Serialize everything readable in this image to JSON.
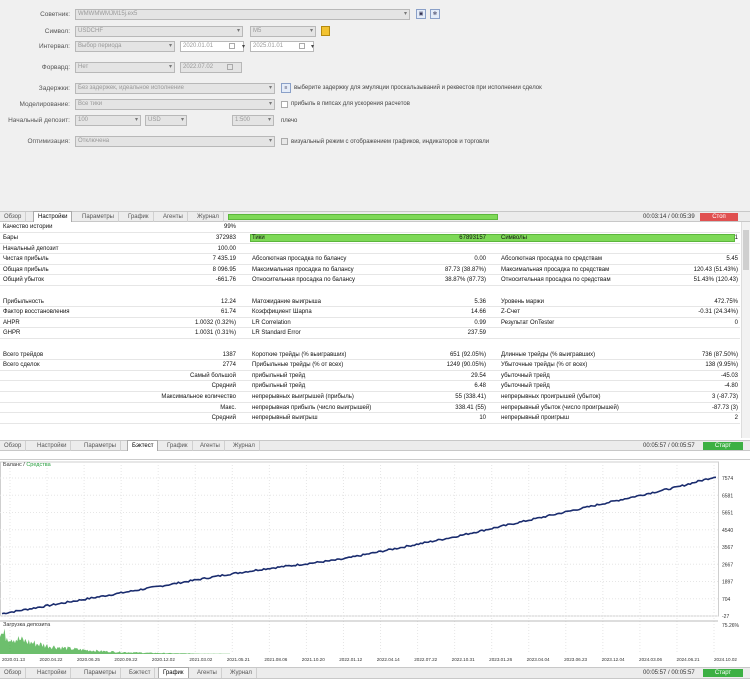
{
  "settings": {
    "advisor": {
      "label": "Советник:",
      "value": "WMWMWMJM15j.ex5"
    },
    "symbol": {
      "label": "Символ:",
      "value": "USDCHF",
      "period": "M5"
    },
    "interval": {
      "label": "Интервал:",
      "value": "Выбор периода",
      "from": "2020.01.01",
      "to": "2025.01.01"
    },
    "forward": {
      "label": "Форвард:",
      "value": "Нет",
      "date": "2022.07.02"
    },
    "delays": {
      "label": "Задержки:",
      "value": "Без задержек, идеальное исполнение",
      "note": "выберите задержку для эмуляции проскальзываний и реквестов при исполнении сделок"
    },
    "modeling": {
      "label": "Моделирование:",
      "value": "Все тики",
      "note": "прибыль в пипсах для ускорения расчетов"
    },
    "deposit": {
      "label": "Начальный депозит:",
      "value": "100",
      "currency": "USD",
      "leverage": "1:500",
      "leverage_note": "плечо"
    },
    "optimization": {
      "label": "Оптимизация:",
      "value": "Отключена",
      "note": "визуальный режим с отображением графиков, индикаторов и торговли"
    }
  },
  "tabs_top": {
    "items": [
      "Обзор",
      "Настройки",
      "Параметры",
      "График",
      "Агенты",
      "Журнал"
    ],
    "active": 1,
    "timer": "00:03:14 / 00:05:39",
    "stop_label": "Стоп"
  },
  "results": {
    "history_quality": {
      "label": "Качество истории",
      "value": "99%"
    },
    "col1": [
      {
        "label": "Бары",
        "value": "372983"
      },
      {
        "label": "Начальный депозит",
        "value": "100.00"
      },
      {
        "label": "Чистая прибыль",
        "value": "7 435.19"
      },
      {
        "label": "Общая прибыль",
        "value": "8 096.95"
      },
      {
        "label": "Общий убыток",
        "value": "-661.76"
      }
    ],
    "col2": [
      {
        "label": "Тики",
        "value": "67893157"
      },
      {
        "label": "",
        "value": ""
      },
      {
        "label": "Абсолютная просадка по балансу",
        "value": "0.00"
      },
      {
        "label": "Максимальная просадка по балансу",
        "value": "87.73 (38.87%)"
      },
      {
        "label": "Относительная просадка по балансу",
        "value": "38.87% (87.73)"
      }
    ],
    "col3": [
      {
        "label": "Символы",
        "value": "1"
      },
      {
        "label": "",
        "value": ""
      },
      {
        "label": "Абсолютная просадка по средствам",
        "value": "5.45"
      },
      {
        "label": "Максимальная просадка по средствам",
        "value": "120.43 (51.43%)"
      },
      {
        "label": "Относительная просадка по средствам",
        "value": "51.43% (120.43)"
      }
    ],
    "col1b": [
      {
        "label": "Прибыльность",
        "value": "12.24"
      },
      {
        "label": "Фактор восстановления",
        "value": "61.74"
      },
      {
        "label": "AHPR",
        "value": "1.0032 (0.32%)"
      },
      {
        "label": "GHPR",
        "value": "1.0031 (0.31%)"
      }
    ],
    "col2b": [
      {
        "label": "Матожидание выигрыша",
        "value": "5.36"
      },
      {
        "label": "Коэффициент Шарпа",
        "value": "14.66"
      },
      {
        "label": "LR Correlation",
        "value": "0.99"
      },
      {
        "label": "LR Standard Error",
        "value": "237.59"
      }
    ],
    "col3b": [
      {
        "label": "Уровень маржи",
        "value": "472.75%"
      },
      {
        "label": "Z-Счет",
        "value": "-0.31 (24.34%)"
      },
      {
        "label": "Результат OnTester",
        "value": "0"
      },
      {
        "label": "",
        "value": ""
      }
    ],
    "col1c": [
      {
        "label": "Всего трейдов",
        "value": "1387"
      },
      {
        "label": "Всего сделок",
        "value": "2774"
      },
      {
        "label": "Самый большой",
        "value": ""
      },
      {
        "label": "Средний",
        "value": ""
      },
      {
        "label": "Максимальное количество",
        "value": ""
      },
      {
        "label": "Макс.",
        "value": ""
      },
      {
        "label": "Средний",
        "value": ""
      }
    ],
    "col2c": [
      {
        "label": "Короткие трейды (% выигравших)",
        "value": "651 (92.05%)"
      },
      {
        "label": "Прибыльные трейды (% от всех)",
        "value": "1249 (90.05%)"
      },
      {
        "label": "прибыльный трейд",
        "value": "29.54"
      },
      {
        "label": "прибыльный трейд",
        "value": "6.48"
      },
      {
        "label": "непрерывных выигрышей (прибыль)",
        "value": "55 (338.41)"
      },
      {
        "label": "непрерывная прибыль (число выигрышей)",
        "value": "338.41 (55)"
      },
      {
        "label": "непрерывный выигрыш",
        "value": "10"
      }
    ],
    "col3c": [
      {
        "label": "Длинные трейды (% выигравших)",
        "value": "736 (87.50%)"
      },
      {
        "label": "Убыточные трейды (% от всех)",
        "value": "138 (9.95%)"
      },
      {
        "label": "убыточный трейд",
        "value": "-45.03"
      },
      {
        "label": "убыточный трейд",
        "value": "-4.80"
      },
      {
        "label": "непрерывных проигрышей (убыток)",
        "value": "3 (-87.73)"
      },
      {
        "label": "непрерывный убыток (число проигрышей)",
        "value": "-87.73 (3)"
      },
      {
        "label": "непрерывный проигрыш",
        "value": "2"
      }
    ]
  },
  "tabs_mid": {
    "items": [
      "Обзор",
      "Настройки",
      "Параметры",
      "Бэктест",
      "График",
      "Агенты",
      "Журнал"
    ],
    "active": 3,
    "timer": "00:05:57 / 00:05:57",
    "start_label": "Старт"
  },
  "chart": {
    "legend_balance": "Баланс",
    "legend_sep": "/",
    "legend_equity": "Средства",
    "load_label": "Загрузка депозита",
    "load_pct": "75.26%",
    "balance_color": "#1a2c6e",
    "equity_color": "#2aa040",
    "load_color": "#3caa3c"
  },
  "chart_data": {
    "type": "line",
    "x": [
      "2020.01.13",
      "2020.04.22",
      "2020.06.25",
      "2020.09.22",
      "2020.12.02",
      "2021.03.02",
      "2021.05.21",
      "2021.08.06",
      "2021.10.20",
      "2022.01.12",
      "2022.04.14",
      "2022.07.22",
      "2022.10.31",
      "2023.01.26",
      "2023.04.04",
      "2023.06.23",
      "2023.12.04",
      "2024.03.06",
      "2024.06.21",
      "2024.10.02"
    ],
    "yticks": [
      "7574",
      "6581",
      "5651",
      "4540",
      "3567",
      "2667",
      "1897",
      "704",
      "-27"
    ],
    "series": [
      {
        "name": "Баланс",
        "values": [
          100,
          450,
          800,
          1150,
          1500,
          1850,
          2200,
          2500,
          2750,
          3000,
          3400,
          3800,
          4200,
          4650,
          5100,
          5550,
          6000,
          6450,
          6900,
          7450
        ]
      }
    ],
    "ylim": [
      -27,
      7800
    ]
  },
  "tabs_bottom": {
    "items": [
      "Обзор",
      "Настройки",
      "Параметры",
      "Бэктест",
      "График",
      "Агенты",
      "Журнал"
    ],
    "active": 4,
    "timer": "00:05:57 / 00:05:57",
    "start_label": "Старт"
  }
}
